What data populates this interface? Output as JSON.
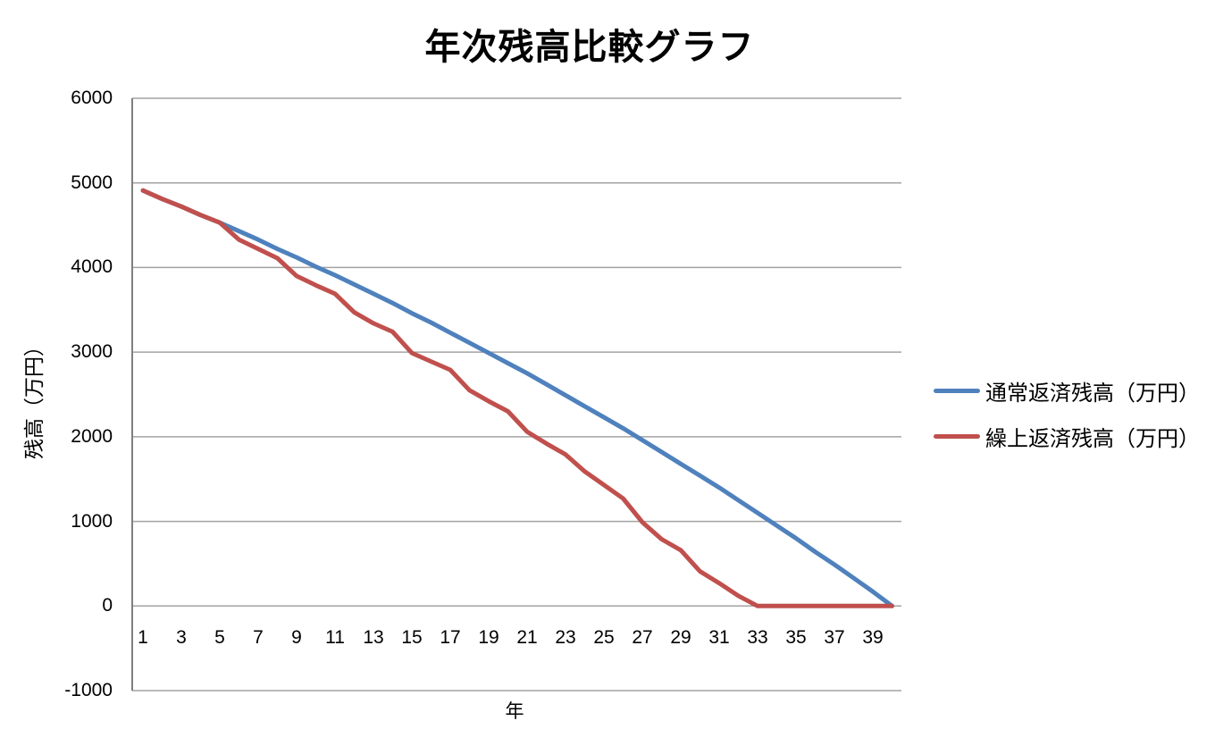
{
  "chart_data": {
    "type": "line",
    "title": "年次残高比較グラフ",
    "xlabel": "年",
    "ylabel": "残高（万円）",
    "x": [
      1,
      2,
      3,
      4,
      5,
      6,
      7,
      8,
      9,
      10,
      11,
      12,
      13,
      14,
      15,
      16,
      17,
      18,
      19,
      20,
      21,
      22,
      23,
      24,
      25,
      26,
      27,
      28,
      29,
      30,
      31,
      32,
      33,
      34,
      35,
      36,
      37,
      38,
      39,
      40
    ],
    "x_tick_labels": [
      1,
      3,
      5,
      7,
      9,
      11,
      13,
      15,
      17,
      19,
      21,
      23,
      25,
      27,
      29,
      31,
      33,
      35,
      37,
      39
    ],
    "ylim": [
      -1000,
      6000
    ],
    "ytick_step": 1000,
    "grid": true,
    "grid_color": "#a3a3a3",
    "axis_color": "#7f7f7f",
    "legend_position": "right",
    "series": [
      {
        "name": "通常返済残高（万円）",
        "color": "#4F81BD",
        "values": [
          4910,
          4810,
          4720,
          4620,
          4530,
          4430,
          4330,
          4220,
          4120,
          4010,
          3910,
          3800,
          3690,
          3580,
          3460,
          3350,
          3230,
          3110,
          2990,
          2870,
          2750,
          2620,
          2490,
          2360,
          2230,
          2100,
          1960,
          1820,
          1680,
          1540,
          1400,
          1250,
          1100,
          950,
          800,
          640,
          490,
          330,
          170,
          0
        ]
      },
      {
        "name": "繰上返済残高（万円）",
        "color": "#C0504D",
        "values": [
          4910,
          4810,
          4720,
          4620,
          4530,
          4330,
          4220,
          4110,
          3900,
          3790,
          3690,
          3470,
          3340,
          3240,
          2990,
          2890,
          2790,
          2550,
          2420,
          2300,
          2060,
          1920,
          1790,
          1590,
          1430,
          1270,
          990,
          790,
          660,
          410,
          270,
          120,
          0,
          0,
          0,
          0,
          0,
          0,
          0,
          0
        ]
      }
    ]
  }
}
